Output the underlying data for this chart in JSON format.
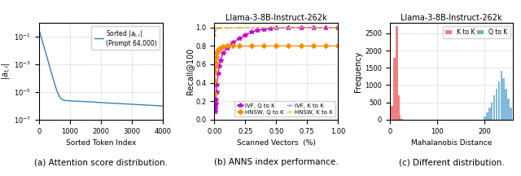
{
  "panel_a": {
    "xlabel": "Sorted Token Index",
    "ylabel": "|a_{t,i}|",
    "legend_label": "Sorted $|a_{t,i}|$\n(Prompt 64,000)",
    "line_color": "#1f77b4",
    "xlim": [
      0,
      4000
    ],
    "xticks": [
      0,
      1000,
      2000,
      3000,
      4000
    ],
    "caption": "(a) Attention score distribution."
  },
  "panel_b": {
    "title": "Llama-3-8B-Instruct-262k",
    "xlabel": "Scanned Vectors  (%)",
    "ylabel": "Recall@100",
    "caption": "(b) ANNS index performance.",
    "xlim": [
      0.0,
      1.0
    ],
    "ylim": [
      0.0,
      1.05
    ],
    "xticks": [
      0.0,
      0.25,
      0.5,
      0.75,
      1.0
    ],
    "series": [
      {
        "key": "IVF_Q_to_K",
        "label": "IVF, Q to K",
        "color": "#cc00cc",
        "marker": "*",
        "linestyle": "-",
        "x": [
          0.002,
          0.004,
          0.006,
          0.008,
          0.01,
          0.015,
          0.02,
          0.03,
          0.04,
          0.05,
          0.07,
          0.1,
          0.15,
          0.2,
          0.25,
          0.3,
          0.35,
          0.4,
          0.45,
          0.5,
          0.6,
          0.7,
          0.8,
          0.9,
          1.0
        ],
        "y": [
          0.09,
          0.12,
          0.15,
          0.18,
          0.22,
          0.3,
          0.38,
          0.5,
          0.58,
          0.64,
          0.72,
          0.78,
          0.84,
          0.88,
          0.92,
          0.95,
          0.97,
          0.98,
          0.99,
          0.995,
          1.0,
          1.0,
          1.0,
          1.0,
          1.0
        ]
      },
      {
        "key": "HNSW_Q_to_K",
        "label": "HNSW, Q to K",
        "color": "#ff8c00",
        "marker": "D",
        "linestyle": "-",
        "x": [
          0.002,
          0.004,
          0.006,
          0.008,
          0.01,
          0.015,
          0.02,
          0.025,
          0.03,
          0.04,
          0.05,
          0.07,
          0.1,
          0.15,
          0.2,
          0.3,
          0.4,
          0.5,
          0.6,
          0.7,
          0.8,
          0.9,
          1.0
        ],
        "y": [
          0.28,
          0.42,
          0.52,
          0.58,
          0.62,
          0.68,
          0.72,
          0.74,
          0.76,
          0.77,
          0.78,
          0.79,
          0.8,
          0.8,
          0.8,
          0.8,
          0.8,
          0.8,
          0.8,
          0.8,
          0.8,
          0.8,
          0.8
        ]
      },
      {
        "key": "IVF_K_to_K",
        "label": "IVF, K to K",
        "color": "#b090e0",
        "marker": ".",
        "linestyle": "--",
        "x": [
          0.002,
          0.004,
          0.006,
          0.008,
          0.01,
          0.015,
          0.02,
          0.03,
          0.05,
          0.1,
          0.2,
          0.4,
          0.6,
          0.8,
          1.0
        ],
        "y": [
          0.92,
          0.97,
          0.99,
          1.0,
          1.0,
          1.0,
          1.0,
          1.0,
          1.0,
          1.0,
          1.0,
          1.0,
          1.0,
          1.0,
          1.0
        ]
      },
      {
        "key": "HNSW_K_to_K",
        "label": "HNSW, K to K",
        "color": "#e8c840",
        "marker": ".",
        "linestyle": "--",
        "x": [
          0.002,
          0.004,
          0.006,
          0.008,
          0.01,
          0.02,
          0.05,
          0.1,
          0.2,
          0.5,
          1.0
        ],
        "y": [
          0.98,
          1.0,
          1.0,
          1.0,
          1.0,
          1.0,
          1.0,
          1.0,
          1.0,
          1.0,
          1.0
        ]
      }
    ]
  },
  "panel_c": {
    "title": "Llama-3-8B-Instruct-262k",
    "xlabel": "Mahalanobis Distance",
    "ylabel": "Frequency",
    "caption": "(c) Different distribution.",
    "xlim": [
      0,
      260
    ],
    "ylim": [
      0,
      2800
    ],
    "yticks": [
      0,
      500,
      1000,
      1500,
      2000,
      2500
    ],
    "xticks": [
      0,
      100,
      200
    ],
    "K_to_K": {
      "label": "K to K",
      "color": "#f08080",
      "bins": [
        5,
        10,
        15,
        18,
        21,
        25
      ],
      "heights": [
        400,
        1800,
        2700,
        700,
        150,
        30
      ]
    },
    "Q_to_K": {
      "label": "Q to K",
      "color": "#6baed6",
      "bins": [
        200,
        205,
        210,
        215,
        220,
        225,
        230,
        235,
        240,
        245,
        250,
        255
      ],
      "heights": [
        100,
        200,
        350,
        500,
        700,
        900,
        1100,
        1400,
        1200,
        900,
        600,
        350
      ]
    }
  }
}
